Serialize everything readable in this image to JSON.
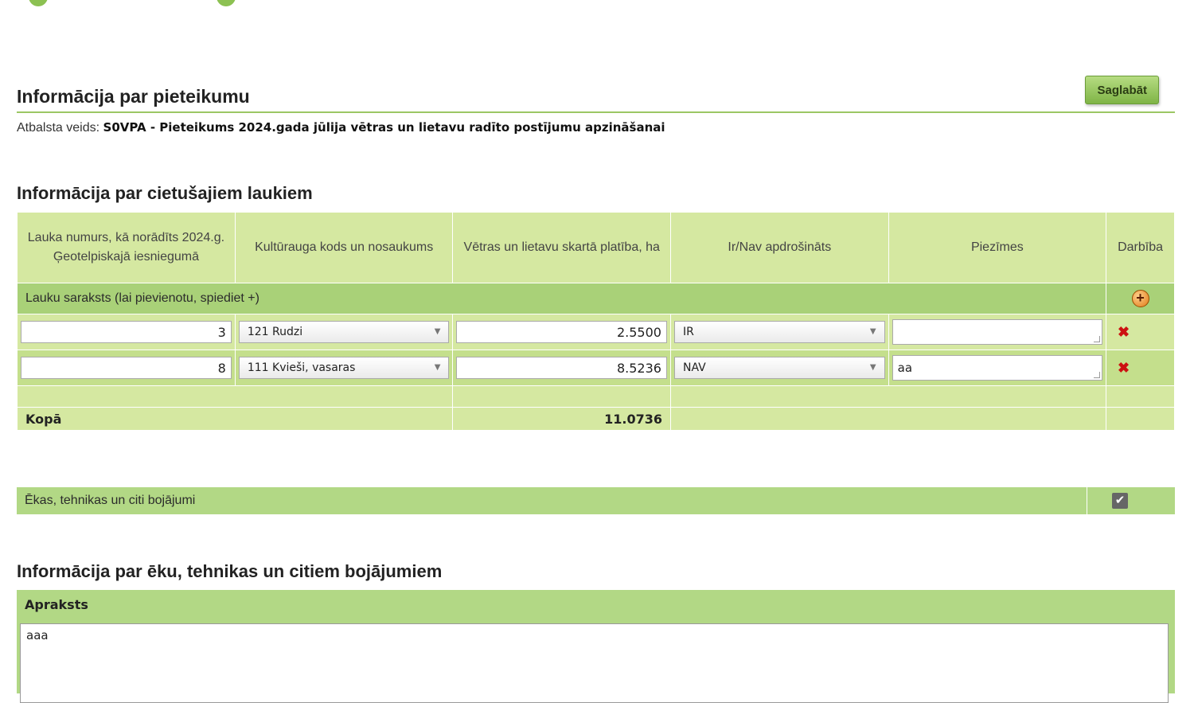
{
  "header": {
    "title": "Informācija par pieteikumu",
    "save_label": "Saglabāt",
    "support_type_label": "Atbalsta veids:",
    "support_type_value": "S0VPA - Pieteikums 2024.gada jūlija vētras un lietavu radīto postījumu apzināšanai"
  },
  "fields_section": {
    "title": "Informācija par cietušajiem laukiem",
    "columns": [
      "Lauka numurs, kā norādīts 2024.g. Ģeotelpiskajā iesniegumā",
      "Kultūrauga kods un nosaukums",
      "Vētras un lietavu skartā platība, ha",
      "Ir/Nav apdrošināts",
      "Piezīmes",
      "Darbība"
    ],
    "list_label": "Lauku saraksts (lai pievienotu, spiediet +)",
    "rows": [
      {
        "field_no": "3",
        "crop": "121 Rudzi",
        "area": "2.5500",
        "insured": "IR",
        "notes": ""
      },
      {
        "field_no": "8",
        "crop": "111 Kvieši, vasaras",
        "area": "8.5236",
        "insured": "NAV",
        "notes": "aa"
      }
    ],
    "total_label": "Kopā",
    "total_value": "11.0736"
  },
  "damages_toggle": {
    "label": "Ēkas, tehnikas un citi bojājumi",
    "checked": true
  },
  "buildings_section": {
    "title": "Informācija par ēku, tehnikas un citiem bojājumiem",
    "description_label": "Apraksts",
    "description_value": "aaa"
  },
  "colors": {
    "accent_green": "#a9d178",
    "header_green": "#d5e8a1",
    "delete_red": "#cc1111"
  }
}
